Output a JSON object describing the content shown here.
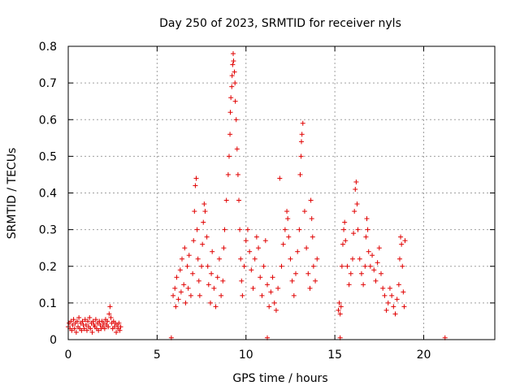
{
  "chart_data": {
    "type": "scatter",
    "title": "Day 250 of 2023, SRMTID for receiver nyls",
    "xlabel": "GPS time / hours",
    "ylabel": "SRMTID / TECUs",
    "xlim": [
      0,
      24
    ],
    "ylim": [
      0,
      0.8
    ],
    "xticks": [
      "0",
      "5",
      "10",
      "15",
      "20"
    ],
    "xtick_values": [
      0,
      5,
      10,
      15,
      20
    ],
    "yticks": [
      "0",
      "0.1",
      "0.2",
      "0.3",
      "0.4",
      "0.5",
      "0.6",
      "0.7",
      "0.8"
    ],
    "ytick_values": [
      0,
      0.1,
      0.2,
      0.3,
      0.4,
      0.5,
      0.6,
      0.7,
      0.8
    ],
    "grid": true,
    "marker": "+",
    "color": "#e00000",
    "series": [
      {
        "name": "SRMTID",
        "points": [
          [
            0.0,
            0.035
          ],
          [
            0.05,
            0.045
          ],
          [
            0.1,
            0.03
          ],
          [
            0.15,
            0.05
          ],
          [
            0.2,
            0.025
          ],
          [
            0.25,
            0.04
          ],
          [
            0.3,
            0.055
          ],
          [
            0.35,
            0.03
          ],
          [
            0.4,
            0.045
          ],
          [
            0.45,
            0.02
          ],
          [
            0.5,
            0.05
          ],
          [
            0.55,
            0.035
          ],
          [
            0.6,
            0.06
          ],
          [
            0.65,
            0.03
          ],
          [
            0.7,
            0.045
          ],
          [
            0.75,
            0.025
          ],
          [
            0.8,
            0.05
          ],
          [
            0.85,
            0.04
          ],
          [
            0.9,
            0.03
          ],
          [
            0.95,
            0.055
          ],
          [
            1.0,
            0.04
          ],
          [
            1.05,
            0.025
          ],
          [
            1.1,
            0.05
          ],
          [
            1.15,
            0.035
          ],
          [
            1.2,
            0.06
          ],
          [
            1.25,
            0.03
          ],
          [
            1.3,
            0.045
          ],
          [
            1.35,
            0.02
          ],
          [
            1.4,
            0.05
          ],
          [
            1.45,
            0.04
          ],
          [
            1.5,
            0.035
          ],
          [
            1.55,
            0.055
          ],
          [
            1.6,
            0.03
          ],
          [
            1.65,
            0.045
          ],
          [
            1.7,
            0.025
          ],
          [
            1.75,
            0.05
          ],
          [
            1.8,
            0.04
          ],
          [
            1.85,
            0.03
          ],
          [
            1.9,
            0.05
          ],
          [
            1.95,
            0.035
          ],
          [
            2.0,
            0.045
          ],
          [
            2.05,
            0.03
          ],
          [
            2.1,
            0.055
          ],
          [
            2.15,
            0.04
          ],
          [
            2.2,
            0.05
          ],
          [
            2.25,
            0.035
          ],
          [
            2.3,
            0.07
          ],
          [
            2.35,
            0.09
          ],
          [
            2.4,
            0.06
          ],
          [
            2.45,
            0.045
          ],
          [
            2.5,
            0.03
          ],
          [
            2.55,
            0.05
          ],
          [
            2.6,
            0.035
          ],
          [
            2.65,
            0.045
          ],
          [
            2.7,
            0.02
          ],
          [
            2.75,
            0.04
          ],
          [
            2.8,
            0.03
          ],
          [
            2.85,
            0.045
          ],
          [
            2.9,
            0.025
          ],
          [
            2.95,
            0.035
          ],
          [
            5.8,
            0.005
          ],
          [
            11.2,
            0.005
          ],
          [
            15.3,
            0.005
          ],
          [
            21.2,
            0.005
          ],
          [
            5.9,
            0.12
          ],
          [
            6.0,
            0.14
          ],
          [
            6.05,
            0.09
          ],
          [
            6.1,
            0.17
          ],
          [
            6.2,
            0.11
          ],
          [
            6.3,
            0.19
          ],
          [
            6.35,
            0.13
          ],
          [
            6.4,
            0.22
          ],
          [
            6.5,
            0.15
          ],
          [
            6.55,
            0.25
          ],
          [
            6.6,
            0.1
          ],
          [
            6.7,
            0.2
          ],
          [
            6.75,
            0.14
          ],
          [
            6.8,
            0.23
          ],
          [
            6.9,
            0.12
          ],
          [
            7.0,
            0.18
          ],
          [
            7.05,
            0.27
          ],
          [
            7.1,
            0.35
          ],
          [
            7.15,
            0.42
          ],
          [
            7.2,
            0.44
          ],
          [
            7.25,
            0.3
          ],
          [
            7.3,
            0.22
          ],
          [
            7.35,
            0.16
          ],
          [
            7.4,
            0.12
          ],
          [
            7.5,
            0.2
          ],
          [
            7.55,
            0.26
          ],
          [
            7.6,
            0.32
          ],
          [
            7.65,
            0.37
          ],
          [
            7.7,
            0.35
          ],
          [
            7.8,
            0.28
          ],
          [
            7.85,
            0.2
          ],
          [
            7.9,
            0.15
          ],
          [
            8.0,
            0.1
          ],
          [
            8.05,
            0.18
          ],
          [
            8.1,
            0.24
          ],
          [
            8.2,
            0.14
          ],
          [
            8.3,
            0.09
          ],
          [
            8.4,
            0.17
          ],
          [
            8.5,
            0.22
          ],
          [
            8.6,
            0.12
          ],
          [
            8.7,
            0.16
          ],
          [
            8.75,
            0.25
          ],
          [
            8.8,
            0.3
          ],
          [
            8.9,
            0.38
          ],
          [
            9.0,
            0.45
          ],
          [
            9.05,
            0.5
          ],
          [
            9.1,
            0.56
          ],
          [
            9.12,
            0.62
          ],
          [
            9.15,
            0.66
          ],
          [
            9.2,
            0.69
          ],
          [
            9.22,
            0.72
          ],
          [
            9.25,
            0.75
          ],
          [
            9.28,
            0.78
          ],
          [
            9.3,
            0.76
          ],
          [
            9.35,
            0.73
          ],
          [
            9.38,
            0.7
          ],
          [
            9.4,
            0.65
          ],
          [
            9.45,
            0.6
          ],
          [
            9.5,
            0.52
          ],
          [
            9.55,
            0.45
          ],
          [
            9.6,
            0.38
          ],
          [
            9.65,
            0.3
          ],
          [
            9.7,
            0.22
          ],
          [
            9.75,
            0.16
          ],
          [
            9.8,
            0.12
          ],
          [
            9.9,
            0.2
          ],
          [
            10.0,
            0.27
          ],
          [
            10.1,
            0.3
          ],
          [
            10.2,
            0.24
          ],
          [
            10.3,
            0.19
          ],
          [
            10.4,
            0.14
          ],
          [
            10.5,
            0.22
          ],
          [
            10.6,
            0.28
          ],
          [
            10.7,
            0.25
          ],
          [
            10.8,
            0.17
          ],
          [
            10.9,
            0.12
          ],
          [
            11.0,
            0.2
          ],
          [
            11.1,
            0.27
          ],
          [
            11.2,
            0.15
          ],
          [
            11.3,
            0.09
          ],
          [
            11.4,
            0.13
          ],
          [
            11.5,
            0.17
          ],
          [
            11.6,
            0.1
          ],
          [
            11.7,
            0.08
          ],
          [
            11.8,
            0.14
          ],
          [
            11.9,
            0.44
          ],
          [
            12.0,
            0.2
          ],
          [
            12.1,
            0.26
          ],
          [
            12.2,
            0.3
          ],
          [
            12.3,
            0.35
          ],
          [
            12.35,
            0.33
          ],
          [
            12.4,
            0.28
          ],
          [
            12.5,
            0.22
          ],
          [
            12.6,
            0.16
          ],
          [
            12.7,
            0.12
          ],
          [
            12.8,
            0.18
          ],
          [
            12.9,
            0.24
          ],
          [
            13.0,
            0.3
          ],
          [
            13.05,
            0.45
          ],
          [
            13.1,
            0.5
          ],
          [
            13.12,
            0.54
          ],
          [
            13.15,
            0.56
          ],
          [
            13.2,
            0.59
          ],
          [
            13.3,
            0.35
          ],
          [
            13.4,
            0.25
          ],
          [
            13.5,
            0.18
          ],
          [
            13.6,
            0.14
          ],
          [
            13.65,
            0.38
          ],
          [
            13.7,
            0.33
          ],
          [
            13.75,
            0.28
          ],
          [
            13.8,
            0.2
          ],
          [
            13.9,
            0.16
          ],
          [
            14.0,
            0.22
          ],
          [
            15.2,
            0.08
          ],
          [
            15.25,
            0.1
          ],
          [
            15.3,
            0.07
          ],
          [
            15.35,
            0.09
          ],
          [
            15.4,
            0.2
          ],
          [
            15.45,
            0.26
          ],
          [
            15.5,
            0.3
          ],
          [
            15.55,
            0.32
          ],
          [
            15.6,
            0.27
          ],
          [
            15.7,
            0.2
          ],
          [
            15.8,
            0.15
          ],
          [
            15.9,
            0.18
          ],
          [
            16.0,
            0.22
          ],
          [
            16.05,
            0.29
          ],
          [
            16.1,
            0.35
          ],
          [
            16.15,
            0.41
          ],
          [
            16.2,
            0.43
          ],
          [
            16.25,
            0.37
          ],
          [
            16.3,
            0.3
          ],
          [
            16.4,
            0.22
          ],
          [
            16.5,
            0.18
          ],
          [
            16.6,
            0.15
          ],
          [
            16.7,
            0.2
          ],
          [
            16.75,
            0.28
          ],
          [
            16.8,
            0.33
          ],
          [
            16.85,
            0.3
          ],
          [
            16.9,
            0.24
          ],
          [
            17.0,
            0.2
          ],
          [
            17.1,
            0.23
          ],
          [
            17.2,
            0.19
          ],
          [
            17.3,
            0.16
          ],
          [
            17.4,
            0.21
          ],
          [
            17.5,
            0.25
          ],
          [
            17.6,
            0.18
          ],
          [
            17.7,
            0.14
          ],
          [
            17.8,
            0.12
          ],
          [
            17.9,
            0.08
          ],
          [
            18.0,
            0.1
          ],
          [
            18.1,
            0.14
          ],
          [
            18.2,
            0.12
          ],
          [
            18.3,
            0.09
          ],
          [
            18.4,
            0.07
          ],
          [
            18.5,
            0.11
          ],
          [
            18.6,
            0.15
          ],
          [
            18.65,
            0.22
          ],
          [
            18.7,
            0.28
          ],
          [
            18.75,
            0.26
          ],
          [
            18.8,
            0.2
          ],
          [
            18.85,
            0.13
          ],
          [
            18.9,
            0.09
          ],
          [
            18.95,
            0.27
          ]
        ]
      }
    ]
  }
}
